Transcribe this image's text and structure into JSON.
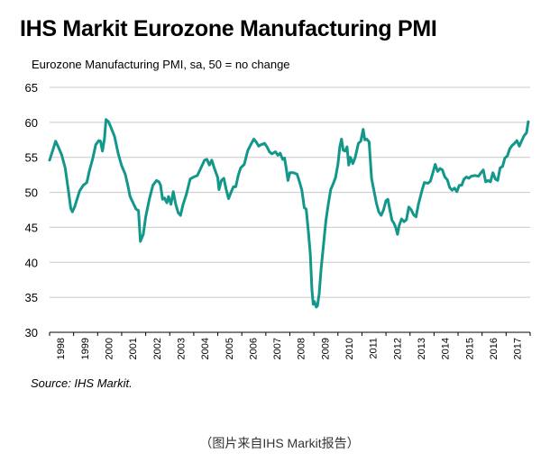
{
  "title": "IHS Markit Eurozone Manufacturing PMI",
  "source": "Source: IHS Markit.",
  "caption": "（图片来自IHS Markit报告）",
  "chart_data": {
    "type": "line",
    "title": "IHS Markit Eurozone Manufacturing PMI",
    "subtitle": "Eurozone Manufacturing PMI, sa, 50 = no change",
    "xlabel": "",
    "ylabel": "",
    "ylim": [
      30,
      65
    ],
    "yticks": [
      30,
      35,
      40,
      45,
      50,
      55,
      60,
      65
    ],
    "xlim": [
      1998.0,
      2018.0
    ],
    "xticks": [
      "1998",
      "1999",
      "2000",
      "2001",
      "2002",
      "2003",
      "2004",
      "2005",
      "2006",
      "2007",
      "2008",
      "2009",
      "2010",
      "2011",
      "2012",
      "2013",
      "2014",
      "2015",
      "2016",
      "2017"
    ],
    "grid": "horizontal",
    "line_color": "#13978b",
    "series": [
      {
        "name": "",
        "points": [
          [
            1998.0,
            54.6
          ],
          [
            1998.15,
            56.2
          ],
          [
            1998.25,
            57.3
          ],
          [
            1998.35,
            56.6
          ],
          [
            1998.5,
            55.4
          ],
          [
            1998.65,
            53.5
          ],
          [
            1998.78,
            50.3
          ],
          [
            1998.88,
            47.7
          ],
          [
            1998.95,
            47.2
          ],
          [
            1999.05,
            48.0
          ],
          [
            1999.25,
            50.2
          ],
          [
            1999.4,
            51.0
          ],
          [
            1999.55,
            51.4
          ],
          [
            1999.65,
            53.0
          ],
          [
            1999.8,
            54.9
          ],
          [
            1999.92,
            56.8
          ],
          [
            2000.05,
            57.4
          ],
          [
            2000.12,
            57.3
          ],
          [
            2000.2,
            55.9
          ],
          [
            2000.28,
            57.6
          ],
          [
            2000.35,
            60.4
          ],
          [
            2000.45,
            60.1
          ],
          [
            2000.55,
            59.3
          ],
          [
            2000.7,
            58.0
          ],
          [
            2000.85,
            55.6
          ],
          [
            2001.0,
            53.8
          ],
          [
            2001.15,
            52.6
          ],
          [
            2001.25,
            51.1
          ],
          [
            2001.35,
            49.4
          ],
          [
            2001.5,
            48.3
          ],
          [
            2001.6,
            47.6
          ],
          [
            2001.7,
            47.4
          ],
          [
            2001.78,
            43.0
          ],
          [
            2001.9,
            44.0
          ],
          [
            2002.0,
            46.5
          ],
          [
            2002.15,
            49.0
          ],
          [
            2002.3,
            51.0
          ],
          [
            2002.45,
            51.7
          ],
          [
            2002.55,
            51.5
          ],
          [
            2002.62,
            51.0
          ],
          [
            2002.7,
            49.0
          ],
          [
            2002.78,
            49.2
          ],
          [
            2002.88,
            48.5
          ],
          [
            2002.95,
            49.4
          ],
          [
            2003.05,
            48.3
          ],
          [
            2003.15,
            50.1
          ],
          [
            2003.25,
            48.3
          ],
          [
            2003.35,
            47.1
          ],
          [
            2003.45,
            46.7
          ],
          [
            2003.55,
            48.2
          ],
          [
            2003.7,
            49.8
          ],
          [
            2003.85,
            51.9
          ],
          [
            2004.0,
            52.2
          ],
          [
            2004.15,
            52.4
          ],
          [
            2004.3,
            53.5
          ],
          [
            2004.45,
            54.6
          ],
          [
            2004.55,
            54.7
          ],
          [
            2004.65,
            53.9
          ],
          [
            2004.75,
            54.6
          ],
          [
            2004.85,
            53.5
          ],
          [
            2005.0,
            52.1
          ],
          [
            2005.05,
            50.4
          ],
          [
            2005.15,
            51.7
          ],
          [
            2005.25,
            52.0
          ],
          [
            2005.35,
            50.4
          ],
          [
            2005.45,
            49.1
          ],
          [
            2005.55,
            50.0
          ],
          [
            2005.65,
            50.8
          ],
          [
            2005.75,
            50.8
          ],
          [
            2005.85,
            52.4
          ],
          [
            2005.95,
            53.5
          ],
          [
            2006.1,
            54.0
          ],
          [
            2006.25,
            56.0
          ],
          [
            2006.4,
            57.0
          ],
          [
            2006.5,
            57.6
          ],
          [
            2006.6,
            57.2
          ],
          [
            2006.7,
            56.6
          ],
          [
            2006.8,
            56.8
          ],
          [
            2006.95,
            57.0
          ],
          [
            2007.05,
            56.5
          ],
          [
            2007.15,
            55.8
          ],
          [
            2007.25,
            55.5
          ],
          [
            2007.4,
            55.8
          ],
          [
            2007.5,
            55.3
          ],
          [
            2007.6,
            55.6
          ],
          [
            2007.7,
            54.7
          ],
          [
            2007.78,
            54.9
          ],
          [
            2007.85,
            53.4
          ],
          [
            2007.92,
            51.7
          ],
          [
            2008.0,
            52.8
          ],
          [
            2008.15,
            52.8
          ],
          [
            2008.3,
            52.6
          ],
          [
            2008.4,
            51.5
          ],
          [
            2008.5,
            50.3
          ],
          [
            2008.6,
            47.8
          ],
          [
            2008.68,
            47.6
          ],
          [
            2008.78,
            44.0
          ],
          [
            2008.85,
            41.1
          ],
          [
            2008.92,
            36.0
          ],
          [
            2008.97,
            34.0
          ],
          [
            2009.02,
            34.4
          ],
          [
            2009.1,
            33.6
          ],
          [
            2009.15,
            33.8
          ],
          [
            2009.22,
            35.5
          ],
          [
            2009.3,
            39.0
          ],
          [
            2009.4,
            42.5
          ],
          [
            2009.5,
            46.0
          ],
          [
            2009.6,
            48.3
          ],
          [
            2009.7,
            50.4
          ],
          [
            2009.8,
            51.2
          ],
          [
            2009.9,
            52.1
          ],
          [
            2010.0,
            54.0
          ],
          [
            2010.08,
            56.5
          ],
          [
            2010.15,
            57.6
          ],
          [
            2010.22,
            56.0
          ],
          [
            2010.3,
            55.9
          ],
          [
            2010.38,
            56.5
          ],
          [
            2010.45,
            53.9
          ],
          [
            2010.52,
            55.0
          ],
          [
            2010.62,
            54.1
          ],
          [
            2010.72,
            55.0
          ],
          [
            2010.85,
            57.0
          ],
          [
            2010.95,
            57.3
          ],
          [
            2011.05,
            59.0
          ],
          [
            2011.12,
            57.5
          ],
          [
            2011.2,
            57.6
          ],
          [
            2011.3,
            57.2
          ],
          [
            2011.4,
            52.0
          ],
          [
            2011.5,
            50.2
          ],
          [
            2011.6,
            48.5
          ],
          [
            2011.7,
            47.2
          ],
          [
            2011.8,
            46.7
          ],
          [
            2011.9,
            47.5
          ],
          [
            2012.0,
            48.8
          ],
          [
            2012.08,
            49.0
          ],
          [
            2012.15,
            47.7
          ],
          [
            2012.25,
            46.0
          ],
          [
            2012.33,
            45.6
          ],
          [
            2012.4,
            45.0
          ],
          [
            2012.48,
            44.0
          ],
          [
            2012.55,
            45.3
          ],
          [
            2012.65,
            46.2
          ],
          [
            2012.75,
            45.8
          ],
          [
            2012.85,
            46.1
          ],
          [
            2012.95,
            47.9
          ],
          [
            2013.05,
            47.5
          ],
          [
            2013.15,
            46.8
          ],
          [
            2013.25,
            46.5
          ],
          [
            2013.35,
            48.3
          ],
          [
            2013.5,
            50.3
          ],
          [
            2013.6,
            51.4
          ],
          [
            2013.75,
            51.3
          ],
          [
            2013.85,
            51.6
          ],
          [
            2013.95,
            52.8
          ],
          [
            2014.05,
            54.0
          ],
          [
            2014.15,
            53.0
          ],
          [
            2014.25,
            53.4
          ],
          [
            2014.35,
            53.2
          ],
          [
            2014.45,
            52.2
          ],
          [
            2014.55,
            51.8
          ],
          [
            2014.65,
            50.7
          ],
          [
            2014.75,
            50.3
          ],
          [
            2014.85,
            50.6
          ],
          [
            2014.95,
            50.1
          ],
          [
            2015.05,
            51.0
          ],
          [
            2015.15,
            51.0
          ],
          [
            2015.25,
            51.9
          ],
          [
            2015.35,
            52.2
          ],
          [
            2015.45,
            52.0
          ],
          [
            2015.55,
            52.3
          ],
          [
            2015.7,
            52.4
          ],
          [
            2015.85,
            52.3
          ],
          [
            2015.95,
            52.8
          ],
          [
            2016.05,
            53.2
          ],
          [
            2016.15,
            51.5
          ],
          [
            2016.25,
            51.7
          ],
          [
            2016.35,
            51.5
          ],
          [
            2016.45,
            52.8
          ],
          [
            2016.55,
            51.9
          ],
          [
            2016.65,
            51.7
          ],
          [
            2016.75,
            53.5
          ],
          [
            2016.85,
            53.7
          ],
          [
            2016.95,
            54.9
          ],
          [
            2017.05,
            55.2
          ],
          [
            2017.15,
            56.2
          ],
          [
            2017.25,
            56.7
          ],
          [
            2017.35,
            57.0
          ],
          [
            2017.45,
            57.4
          ],
          [
            2017.55,
            56.6
          ],
          [
            2017.65,
            57.4
          ],
          [
            2017.75,
            58.1
          ],
          [
            2017.85,
            58.5
          ],
          [
            2017.92,
            60.1
          ]
        ]
      }
    ]
  }
}
